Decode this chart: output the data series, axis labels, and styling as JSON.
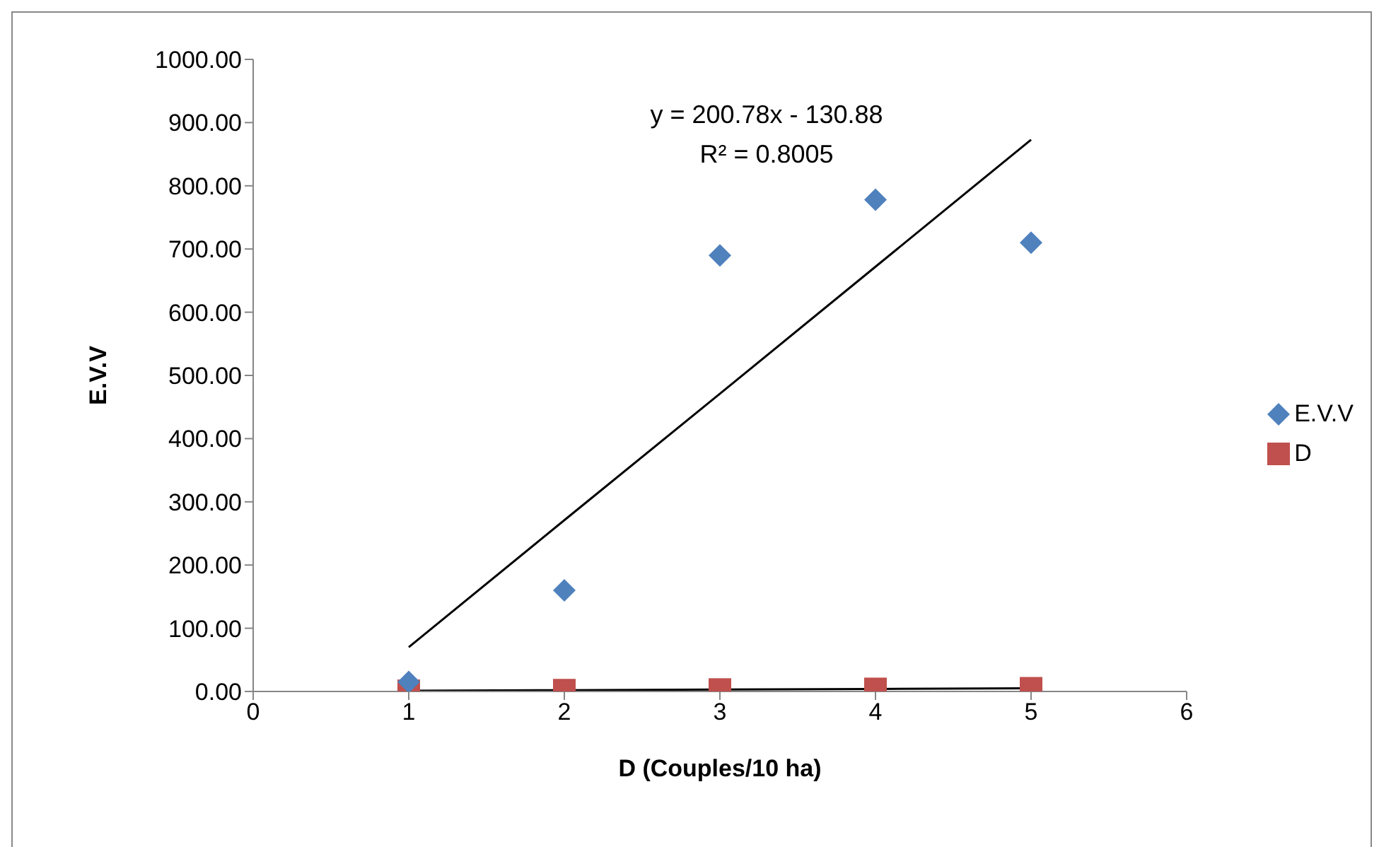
{
  "chart_data": {
    "type": "scatter",
    "xlabel": "D (Couples/10 ha)",
    "ylabel": "E.V.V",
    "xlim": [
      0,
      6
    ],
    "xticks": [
      0,
      1,
      2,
      3,
      4,
      5,
      6
    ],
    "ylim": [
      0,
      1000
    ],
    "yticks": [
      {
        "value": 0,
        "label": "0.00"
      },
      {
        "value": 100,
        "label": "100.00"
      },
      {
        "value": 200,
        "label": "200.00"
      },
      {
        "value": 300,
        "label": "300.00"
      },
      {
        "value": 400,
        "label": "400.00"
      },
      {
        "value": 500,
        "label": "500.00"
      },
      {
        "value": 600,
        "label": "600.00"
      },
      {
        "value": 700,
        "label": "700.00"
      },
      {
        "value": 800,
        "label": "800.00"
      },
      {
        "value": 900,
        "label": "900.00"
      },
      {
        "value": 1000,
        "label": "1000.00"
      }
    ],
    "grid": false,
    "legend": "right",
    "x": [
      1,
      2,
      3,
      4,
      5
    ],
    "series": [
      {
        "name": "E.V.V",
        "color": "#4f81bd",
        "marker": "diamond",
        "values": [
          15,
          160,
          690,
          778,
          710
        ]
      },
      {
        "name": "D",
        "color": "#c0504d",
        "marker": "square",
        "values": [
          1,
          2,
          3,
          4,
          5
        ]
      },
      {
        "type": "line",
        "color": "#000000",
        "values": [
          70,
          271,
          471,
          672,
          873
        ]
      },
      {
        "type": "line",
        "color": "#000000",
        "values": [
          1,
          2,
          3,
          4,
          5
        ]
      }
    ],
    "annotations": [
      "y = 200.78x - 130.88",
      "R² = 0.8005"
    ]
  }
}
